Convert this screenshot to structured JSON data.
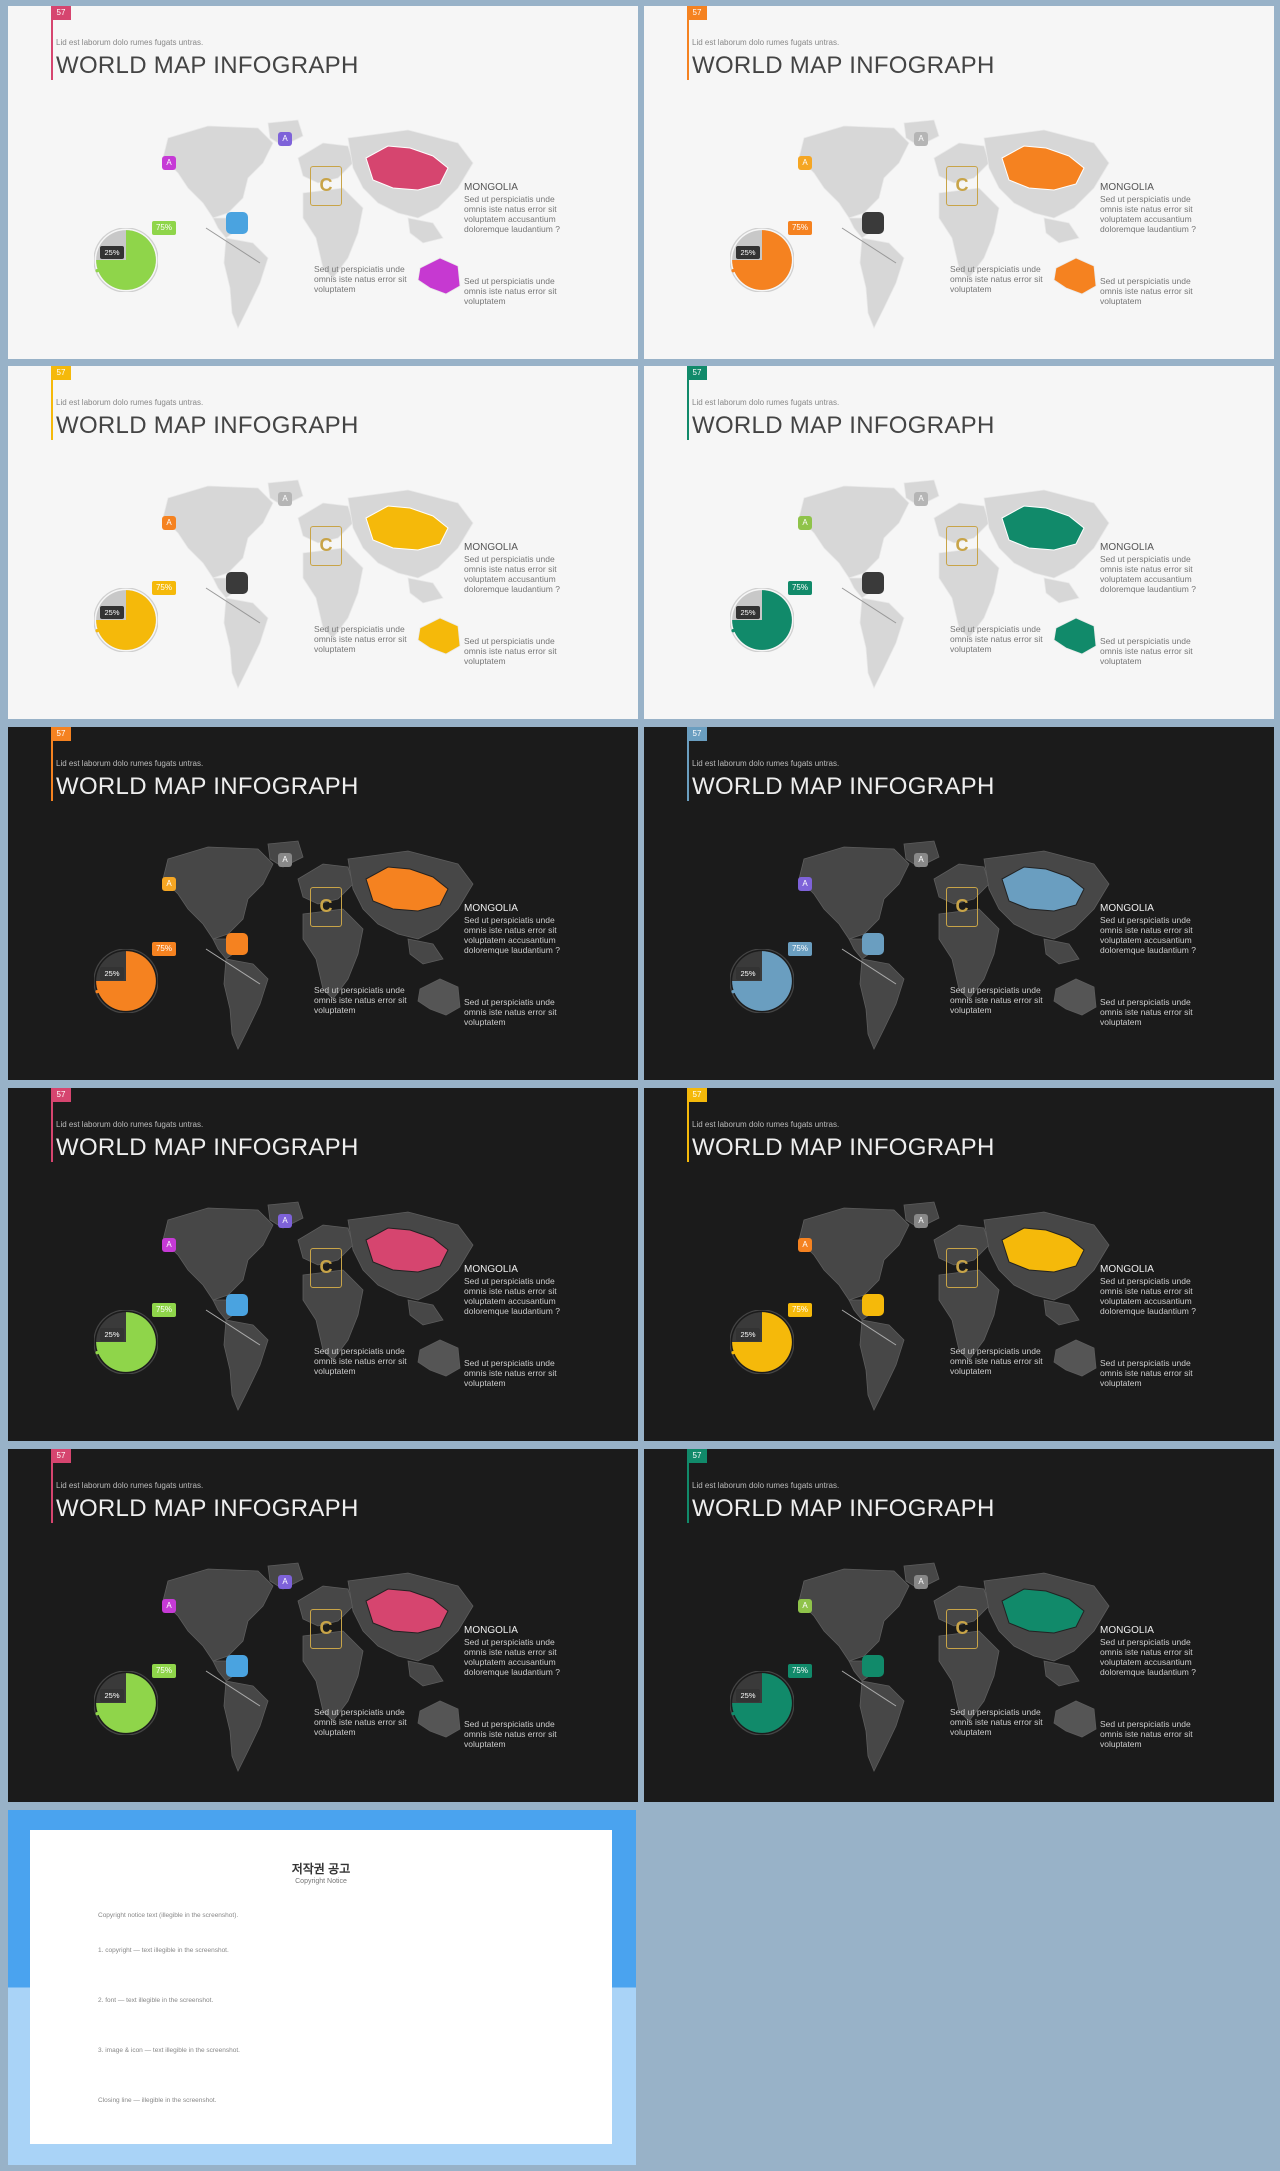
{
  "common": {
    "subtitle": "Lid est laborum dolo rumes fugats untras.",
    "title": "WORLD MAP INFOGRAPH",
    "mongolia_heading": "MONGOLIA",
    "mongolia_text": "Sed ut perspiciatis unde omnis iste natus error sit voluptatem accusantium doloremque laudantium ?",
    "caption_america": "Sed ut perspiciatis unde omnis iste natus error sit voluptatem",
    "caption_australia": "Sed ut perspiciatis unde omnis iste natus error sit voluptatem",
    "pct_small": "25%",
    "pct_large": "75%",
    "label_letter": "A",
    "logo_letter": "C"
  },
  "slides": [
    {
      "number": "57",
      "theme": "light",
      "accent": "#d6456f",
      "pie": "#8fd54a",
      "pin": "#4aa3e0",
      "lbl_a": "#c63ad6",
      "lbl_b": "#7e62d9",
      "aus": "#c639d1",
      "bar": "#8fd54a"
    },
    {
      "number": "57",
      "theme": "light",
      "accent": "#f58220",
      "pie": "#f58220",
      "pin": "#3a3a3a",
      "lbl_a": "#f5a623",
      "lbl_b": "#b5b5b5",
      "aus": "#f58220",
      "bar": "#f58220"
    },
    {
      "number": "57",
      "theme": "light",
      "accent": "#f5b90a",
      "pie": "#f5b90a",
      "pin": "#3a3a3a",
      "lbl_a": "#f58220",
      "lbl_b": "#b5b5b5",
      "aus": "#f5b90a",
      "bar": "#f5b90a"
    },
    {
      "number": "57",
      "theme": "light",
      "accent": "#118a6a",
      "pie": "#118a6a",
      "pin": "#3a3a3a",
      "lbl_a": "#8fc34a",
      "lbl_b": "#b5b5b5",
      "aus": "#118a6a",
      "bar": "#118a6a"
    },
    {
      "number": "57",
      "theme": "dark",
      "accent": "#f58220",
      "pie": "#f58220",
      "pin": "#f58220",
      "lbl_a": "#f5a623",
      "lbl_b": "#888888",
      "aus": "#555555",
      "bar": "#f58220"
    },
    {
      "number": "57",
      "theme": "dark",
      "accent": "#6a9ec0",
      "pie": "#6a9ec0",
      "pin": "#6a9ec0",
      "lbl_a": "#7e62d9",
      "lbl_b": "#888888",
      "aus": "#555555",
      "bar": "#6a9ec0"
    },
    {
      "number": "57",
      "theme": "dark",
      "accent": "#d6456f",
      "pie": "#8fd54a",
      "pin": "#4aa3e0",
      "lbl_a": "#c63ad6",
      "lbl_b": "#7e62d9",
      "aus": "#555555",
      "bar": "#8fd54a"
    },
    {
      "number": "57",
      "theme": "dark",
      "accent": "#f5b90a",
      "pie": "#f5b90a",
      "pin": "#f5b90a",
      "lbl_a": "#f58220",
      "lbl_b": "#888888",
      "aus": "#555555",
      "bar": "#f5b90a"
    },
    {
      "number": "57",
      "theme": "dark",
      "accent": "#d6456f",
      "pie": "#8fd54a",
      "pin": "#4aa3e0",
      "lbl_a": "#c63ad6",
      "lbl_b": "#7e62d9",
      "aus": "#555555",
      "bar": "#8fd54a"
    },
    {
      "number": "57",
      "theme": "dark",
      "accent": "#118a6a",
      "pie": "#118a6a",
      "pin": "#118a6a",
      "lbl_a": "#8fc34a",
      "lbl_b": "#888888",
      "aus": "#555555",
      "bar": "#118a6a"
    }
  ],
  "copyright": {
    "heading": "저작권 공고",
    "subheading": "Copyright Notice",
    "paragraphs": [
      "Copyright notice text (illegible in the screenshot).",
      "1. copyright — text illegible in the screenshot.",
      "2. font — text illegible in the screenshot.",
      "3. image & icon — text illegible in the screenshot.",
      "Closing line — illegible in the screenshot."
    ]
  }
}
